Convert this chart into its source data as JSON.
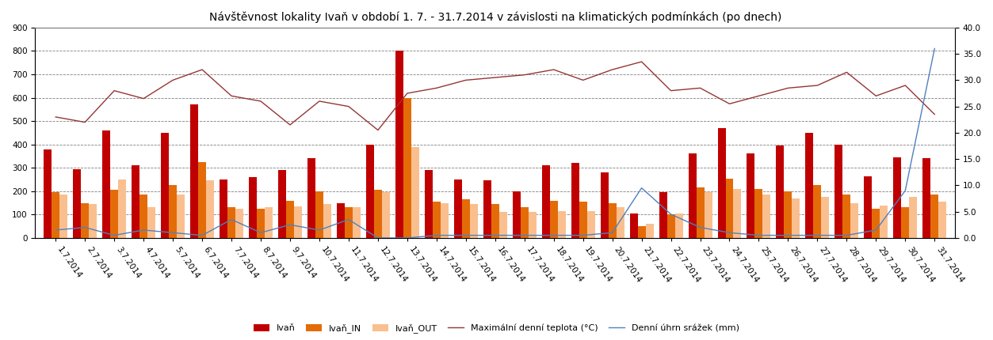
{
  "title": "Návštěvnost lokality Ivaň v období 1. 7. - 31.7.2014 v závislosti na klimatických podmínkách (po dnech)",
  "dates": [
    "1.7.2014",
    "2.7.2014",
    "3.7.2014",
    "4.7.2014",
    "5.7.2014",
    "6.7.2014",
    "7.7.2014",
    "8.7.2014",
    "9.7.2014",
    "10.7.2014",
    "11.7.2014",
    "12.7.2014",
    "13.7.2014",
    "14.7.2014",
    "15.7.2014",
    "16.7.2014",
    "17.7.2014",
    "18.7.2014",
    "19.7.2014",
    "20.7.2014",
    "21.7.2014",
    "22.7.2014",
    "23.7.2014",
    "24.7.2014",
    "25.7.2014",
    "26.7.2014",
    "27.7.2014",
    "28.7.2014",
    "29.7.2014",
    "30.7.2014",
    "31.7.2014"
  ],
  "ivan": [
    380,
    295,
    460,
    310,
    450,
    570,
    250,
    260,
    290,
    340,
    150,
    400,
    800,
    290,
    250,
    245,
    200,
    310,
    320,
    280,
    105,
    195,
    360,
    470,
    360,
    395,
    450,
    400,
    265,
    345,
    340
  ],
  "ivan_in": [
    195,
    150,
    205,
    185,
    225,
    325,
    130,
    125,
    160,
    200,
    130,
    205,
    600,
    155,
    165,
    145,
    130,
    160,
    155,
    150,
    50,
    100,
    215,
    255,
    210,
    200,
    225,
    185,
    125,
    130,
    185
  ],
  "ivan_out": [
    185,
    145,
    250,
    130,
    185,
    245,
    125,
    130,
    135,
    145,
    130,
    195,
    390,
    150,
    145,
    110,
    110,
    115,
    115,
    130,
    60,
    105,
    195,
    210,
    185,
    170,
    175,
    150,
    140,
    175,
    155
  ],
  "temp": [
    23.0,
    22.0,
    28.0,
    26.5,
    30.0,
    32.0,
    27.0,
    26.0,
    21.5,
    26.0,
    25.0,
    20.5,
    27.5,
    28.5,
    30.0,
    30.5,
    31.0,
    32.0,
    30.0,
    32.0,
    33.5,
    28.0,
    28.5,
    25.5,
    27.0,
    28.5,
    29.0,
    31.5,
    27.0,
    29.0,
    23.5
  ],
  "rain": [
    1.5,
    2.0,
    0.5,
    1.5,
    1.0,
    0.5,
    3.5,
    1.0,
    2.5,
    1.5,
    3.5,
    0.0,
    0.0,
    0.5,
    0.5,
    0.5,
    0.5,
    0.5,
    0.5,
    1.0,
    9.5,
    4.5,
    2.0,
    1.0,
    0.5,
    0.5,
    0.5,
    0.5,
    1.5,
    9.0,
    36.0
  ],
  "bar_color_ivan": "#c00000",
  "bar_color_in": "#e36c09",
  "bar_color_out": "#fabf8f",
  "line_color_temp": "#943634",
  "line_color_rain": "#4f81bd",
  "ylim_left": [
    0,
    900
  ],
  "ylim_right": [
    0,
    40
  ],
  "yticks_left": [
    0,
    100,
    200,
    300,
    400,
    500,
    600,
    700,
    800,
    900
  ],
  "yticks_right": [
    0.0,
    5.0,
    10.0,
    15.0,
    20.0,
    25.0,
    30.0,
    35.0,
    40.0
  ],
  "legend_labels": [
    "Ivaň",
    "Ivaň_IN",
    "Ivaň_OUT",
    "Maximální denní teplota (°C)",
    "Denní úhrn srážek (mm)"
  ],
  "background_color": "#ffffff",
  "title_fontsize": 10,
  "tick_fontsize": 7.5,
  "legend_fontsize": 8
}
